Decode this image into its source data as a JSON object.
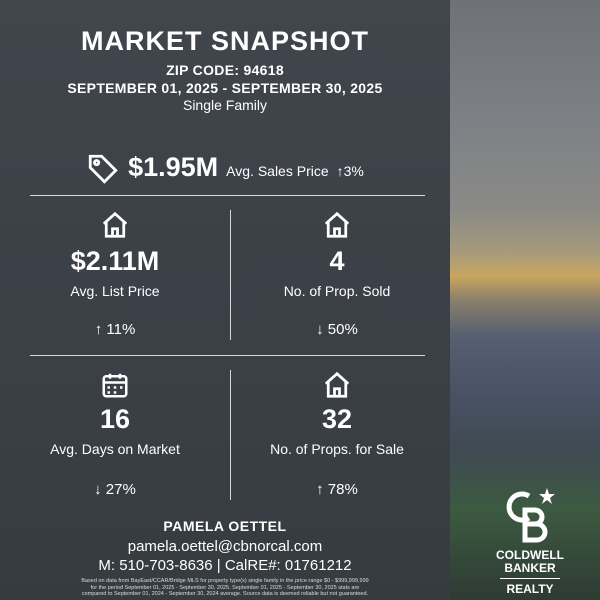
{
  "header": {
    "title": "MARKET SNAPSHOT",
    "zip": "ZIP CODE: 94618",
    "dates": "SEPTEMBER 01, 2025 - SEPTEMBER 30, 2025",
    "type": "Single Family"
  },
  "sales": {
    "value": "$1.95M",
    "label": "Avg. Sales Price",
    "change": "↑3%"
  },
  "stats": [
    {
      "value": "$2.11M",
      "label": "Avg. List Price",
      "change": "↑ 11%",
      "icon": "home-icon"
    },
    {
      "value": "4",
      "label": "No. of Prop. Sold",
      "change": "↓ 50%",
      "icon": "home-icon"
    },
    {
      "value": "16",
      "label": "Avg. Days on Market",
      "change": "↓ 27%",
      "icon": "calendar-icon"
    },
    {
      "value": "32",
      "label": "No. of Props. for Sale",
      "change": "↑ 78%",
      "icon": "home-icon"
    }
  ],
  "agent": {
    "name": "PAMELA OETTEL",
    "email": "pamela.oettel@cbnorcal.com",
    "phone": "M: 510-703-8636 | CalRE#: 01761212"
  },
  "disclaimer": "Based on data from BayEast/CCAR/Bridge MLS for property type(s) single family in the price range $0 - $999,999,999 for the period September 01, 2025 - September 30, 2025. September 01, 2025 - September 30, 2025 stats are compared to September 01, 2024 - September 30, 2024 average. Source data is deemed reliable but not guaranteed.",
  "logo": {
    "line1": "COLDWELL",
    "line2": "BANKER",
    "line3": "REALTY"
  }
}
